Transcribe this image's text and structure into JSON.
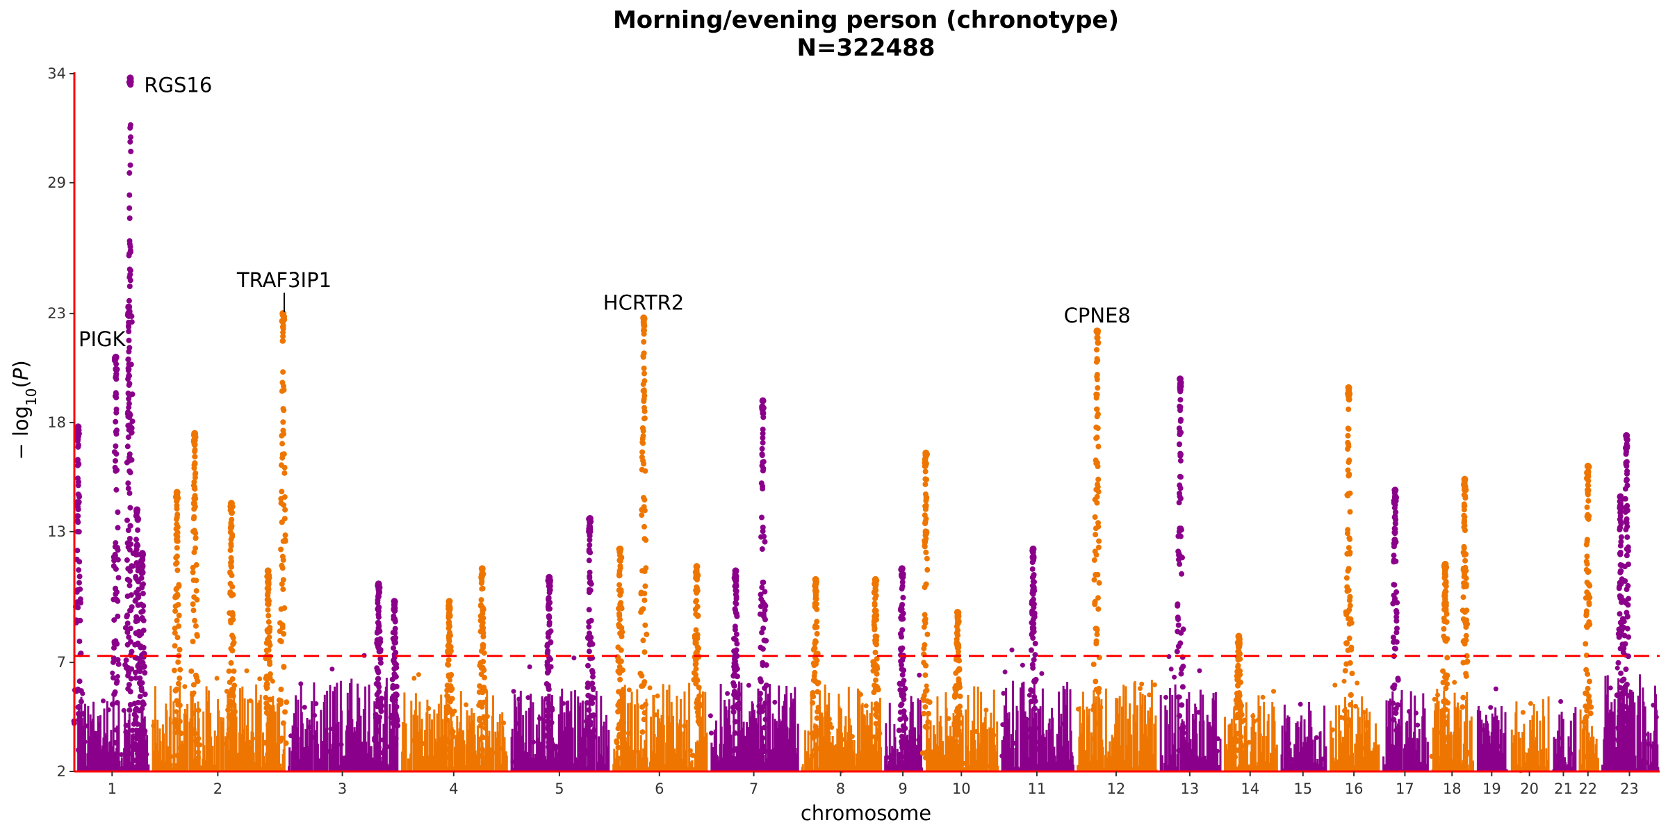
{
  "chart_data": {
    "type": "scatter",
    "title": "Morning/evening person (chronotype)",
    "subtitle": "N=322488",
    "xlabel": "chromosome",
    "ylabel": "− log10(P)",
    "ylim": [
      2,
      34
    ],
    "yticks": [
      2,
      7,
      13,
      18,
      23,
      29,
      34
    ],
    "significance_threshold": 7.3,
    "colors": {
      "odd": "#8B008B",
      "even": "#EE7600",
      "axis": "#FF0000",
      "threshold": "#FF0000"
    },
    "chromosomes": [
      {
        "label": "1",
        "start": 0,
        "end": 1.0,
        "base_max": 5.5
      },
      {
        "label": "2",
        "start": 1.0,
        "end": 2.8,
        "base_max": 6.0
      },
      {
        "label": "3",
        "start": 2.8,
        "end": 4.3,
        "base_max": 6.3
      },
      {
        "label": "4",
        "start": 4.3,
        "end": 5.75,
        "base_max": 5.8
      },
      {
        "label": "5",
        "start": 5.75,
        "end": 7.1,
        "base_max": 5.8
      },
      {
        "label": "6",
        "start": 7.1,
        "end": 8.4,
        "base_max": 6.2
      },
      {
        "label": "7",
        "start": 8.4,
        "end": 9.6,
        "base_max": 6.2
      },
      {
        "label": "8",
        "start": 9.6,
        "end": 10.7,
        "base_max": 6.0
      },
      {
        "label": "9",
        "start": 10.7,
        "end": 11.25,
        "base_max": 5.5
      },
      {
        "label": "10",
        "start": 11.25,
        "end": 12.25,
        "base_max": 6.0
      },
      {
        "label": "11",
        "start": 12.25,
        "end": 13.25,
        "base_max": 6.2
      },
      {
        "label": "12",
        "start": 13.25,
        "end": 14.35,
        "base_max": 6.3
      },
      {
        "label": "13",
        "start": 14.35,
        "end": 15.2,
        "base_max": 6.0
      },
      {
        "label": "14",
        "start": 15.2,
        "end": 15.95,
        "base_max": 5.5
      },
      {
        "label": "15",
        "start": 15.95,
        "end": 16.6,
        "base_max": 5.3
      },
      {
        "label": "16",
        "start": 16.6,
        "end": 17.3,
        "base_max": 5.5
      },
      {
        "label": "17",
        "start": 17.3,
        "end": 17.95,
        "base_max": 6.0
      },
      {
        "label": "18",
        "start": 17.95,
        "end": 18.55,
        "base_max": 6.0
      },
      {
        "label": "19",
        "start": 18.55,
        "end": 19.0,
        "base_max": 5.0
      },
      {
        "label": "20",
        "start": 19.0,
        "end": 19.55,
        "base_max": 5.5
      },
      {
        "label": "21",
        "start": 19.55,
        "end": 19.9,
        "base_max": 5.0
      },
      {
        "label": "22",
        "start": 19.9,
        "end": 20.2,
        "base_max": 5.0
      },
      {
        "label": "23",
        "start": 20.2,
        "end": 21.0,
        "base_max": 6.5
      }
    ],
    "peaks": [
      {
        "chr": 1,
        "pos": 0.55,
        "p": 21.0
      },
      {
        "chr": 1,
        "pos": 0.05,
        "p": 17.8
      },
      {
        "chr": 1,
        "pos": 0.72,
        "p": 23.3
      },
      {
        "chr": 1,
        "pos": 0.74,
        "p": 33.8
      },
      {
        "chr": 1,
        "pos": 0.83,
        "p": 14.0
      },
      {
        "chr": 1,
        "pos": 0.9,
        "p": 12.0
      },
      {
        "chr": 2,
        "pos": 0.2,
        "p": 14.8
      },
      {
        "chr": 2,
        "pos": 0.33,
        "p": 17.5
      },
      {
        "chr": 2,
        "pos": 0.6,
        "p": 14.3
      },
      {
        "chr": 2,
        "pos": 0.87,
        "p": 11.2
      },
      {
        "chr": 2,
        "pos": 0.98,
        "p": 23.0
      },
      {
        "chr": 3,
        "pos": 0.82,
        "p": 10.6
      },
      {
        "chr": 3,
        "pos": 0.96,
        "p": 9.8
      },
      {
        "chr": 4,
        "pos": 0.46,
        "p": 9.8
      },
      {
        "chr": 4,
        "pos": 0.76,
        "p": 11.3
      },
      {
        "chr": 5,
        "pos": 0.4,
        "p": 10.9
      },
      {
        "chr": 5,
        "pos": 0.8,
        "p": 13.6
      },
      {
        "chr": 6,
        "pos": 0.1,
        "p": 12.2
      },
      {
        "chr": 6,
        "pos": 0.34,
        "p": 22.8
      },
      {
        "chr": 6,
        "pos": 0.88,
        "p": 11.4
      },
      {
        "chr": 7,
        "pos": 0.3,
        "p": 11.2
      },
      {
        "chr": 7,
        "pos": 0.6,
        "p": 19.0
      },
      {
        "chr": 8,
        "pos": 0.2,
        "p": 10.8
      },
      {
        "chr": 8,
        "pos": 0.92,
        "p": 10.8
      },
      {
        "chr": 9,
        "pos": 0.48,
        "p": 11.3
      },
      {
        "chr": 10,
        "pos": 0.03,
        "p": 16.6
      },
      {
        "chr": 10,
        "pos": 0.45,
        "p": 9.3
      },
      {
        "chr": 11,
        "pos": 0.45,
        "p": 12.2
      },
      {
        "chr": 12,
        "pos": 0.27,
        "p": 22.2
      },
      {
        "chr": 13,
        "pos": 0.35,
        "p": 20.0
      },
      {
        "chr": 14,
        "pos": 0.3,
        "p": 8.2
      },
      {
        "chr": 16,
        "pos": 0.4,
        "p": 19.6
      },
      {
        "chr": 17,
        "pos": 0.3,
        "p": 14.9
      },
      {
        "chr": 18,
        "pos": 0.35,
        "p": 11.5
      },
      {
        "chr": 18,
        "pos": 0.78,
        "p": 15.4
      },
      {
        "chr": 22,
        "pos": 0.5,
        "p": 16.0
      },
      {
        "chr": 23,
        "pos": 0.45,
        "p": 17.4
      },
      {
        "chr": 23,
        "pos": 0.35,
        "p": 14.6
      }
    ],
    "annotations": [
      {
        "text": "RGS16",
        "pos": 0.74,
        "p": 33.8
      },
      {
        "text": "PIGK",
        "pos": 0.55,
        "p": 21.0
      },
      {
        "text": "TRAF3IP1",
        "pos": 2.78,
        "p": 23.0
      },
      {
        "text": "HCRTR2",
        "pos": 7.54,
        "p": 22.8
      },
      {
        "text": "CPNE8",
        "pos": 13.55,
        "p": 22.2
      }
    ]
  }
}
